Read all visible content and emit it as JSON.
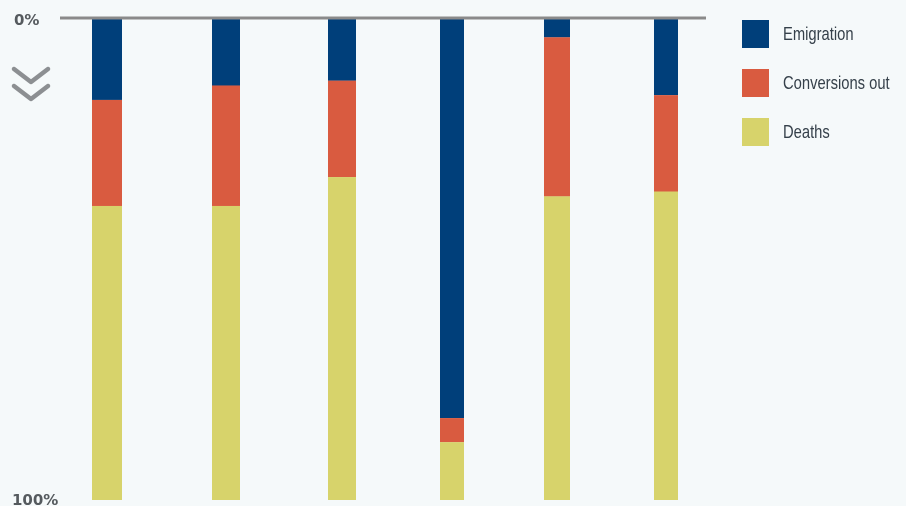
{
  "chart_data": {
    "type": "bar",
    "stacked": true,
    "orientation": "vertical",
    "y_axis_reversed": true,
    "ylim": [
      0,
      100
    ],
    "ytick_labels": [
      "0%",
      "100%"
    ],
    "categories": [
      "",
      "",
      "",
      "",
      "",
      ""
    ],
    "series": [
      {
        "name": "Emigration",
        "color": "#003f7a",
        "values": [
          17,
          14,
          13,
          83,
          4,
          16
        ]
      },
      {
        "name": "Conversions out",
        "color": "#d95b40",
        "values": [
          22,
          25,
          20,
          5,
          33,
          20
        ]
      },
      {
        "name": "Deaths",
        "color": "#d7d36b",
        "values": [
          61,
          61,
          67,
          12,
          63,
          64
        ]
      }
    ],
    "legend_position": "top-right",
    "grid": false
  },
  "colors": {
    "axis_line": "#8a8a8a",
    "axis_text": "#555a5e",
    "chevron": "#8c8f92",
    "background": "#f5f9fa"
  },
  "icons": {
    "scroll_indicator": "double-chevron-down-icon"
  }
}
